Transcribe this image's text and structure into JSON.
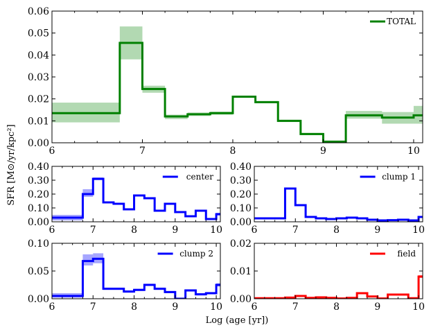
{
  "figure": {
    "xlabel": "Log (age [yr])",
    "ylabel": "SFR [M⊙/yr/kpc²]"
  },
  "chart_data": [
    {
      "id": "total",
      "type": "line",
      "step": true,
      "legend": "TOTAL",
      "color": "#008000",
      "xlim": [
        6,
        10.1
      ],
      "ylim": [
        0,
        0.06
      ],
      "xticks": [
        6,
        7,
        8,
        9,
        10
      ],
      "yticks": [
        0,
        0.01,
        0.02,
        0.03,
        0.04,
        0.05,
        0.06
      ],
      "xtick_labels": [
        "6",
        "7",
        "8",
        "9",
        "10"
      ],
      "ytick_labels": [
        "0.00",
        "0.01",
        "0.02",
        "0.03",
        "0.04",
        "0.05",
        "0.06"
      ],
      "edges": [
        6,
        6.75,
        7.0,
        7.25,
        7.5,
        7.75,
        8.0,
        8.25,
        8.5,
        8.75,
        9.0,
        9.25,
        9.65,
        10.0,
        10.1
      ],
      "values": [
        0.0135,
        0.0455,
        0.0245,
        0.012,
        0.013,
        0.0135,
        0.021,
        0.0185,
        0.01,
        0.004,
        0.0005,
        0.0125,
        0.0115,
        0.0125
      ],
      "band_lo": [
        0.0093,
        0.038,
        0.0228,
        0.0108,
        0.0122,
        0.0128,
        0.0205,
        0.018,
        0.0095,
        0.0035,
        0.0002,
        0.011,
        0.0087,
        0.0087
      ],
      "band_hi": [
        0.0183,
        0.053,
        0.026,
        0.0128,
        0.0138,
        0.0142,
        0.0215,
        0.019,
        0.0105,
        0.0045,
        0.0008,
        0.0145,
        0.014,
        0.0168
      ]
    },
    {
      "id": "center",
      "type": "line",
      "step": true,
      "legend": "center",
      "color": "#0000ff",
      "xlim": [
        6,
        10.1
      ],
      "ylim": [
        0,
        0.4
      ],
      "xticks": [
        6,
        7,
        8,
        9,
        10
      ],
      "yticks": [
        0,
        0.1,
        0.2,
        0.3,
        0.4
      ],
      "xtick_labels": [
        "6",
        "7",
        "8",
        "9",
        "10"
      ],
      "ytick_labels": [
        "0.00",
        "0.10",
        "0.20",
        "0.30",
        "0.40"
      ],
      "edges": [
        6,
        6.75,
        7.0,
        7.25,
        7.5,
        7.75,
        8.0,
        8.25,
        8.5,
        8.75,
        9.0,
        9.25,
        9.5,
        9.75,
        10.0,
        10.1
      ],
      "values": [
        0.03,
        0.2,
        0.31,
        0.14,
        0.13,
        0.09,
        0.19,
        0.17,
        0.08,
        0.13,
        0.07,
        0.04,
        0.08,
        0.02,
        0.055
      ],
      "band_lo": [
        0.01,
        0.18,
        0.3,
        0.135,
        0.125,
        0.085,
        0.185,
        0.165,
        0.075,
        0.125,
        0.065,
        0.035,
        0.075,
        0.015,
        0.045
      ],
      "band_hi": [
        0.05,
        0.235,
        0.32,
        0.145,
        0.135,
        0.095,
        0.195,
        0.175,
        0.085,
        0.135,
        0.075,
        0.045,
        0.085,
        0.025,
        0.065
      ]
    },
    {
      "id": "clump1",
      "type": "line",
      "step": true,
      "legend": "clump 1",
      "color": "#0000ff",
      "xlim": [
        6,
        10.1
      ],
      "ylim": [
        0,
        0.4
      ],
      "xticks": [
        6,
        7,
        8,
        9,
        10
      ],
      "yticks": [
        0,
        0.1,
        0.2,
        0.3,
        0.4
      ],
      "xtick_labels": [
        "6",
        "7",
        "8",
        "9",
        "10"
      ],
      "ytick_labels": [
        "0.00",
        "0.10",
        "0.20",
        "0.30",
        "0.40"
      ],
      "edges": [
        6,
        6.75,
        7.0,
        7.25,
        7.5,
        7.75,
        8.0,
        8.25,
        8.5,
        8.75,
        9.0,
        9.25,
        9.5,
        9.75,
        10.0,
        10.1
      ],
      "values": [
        0.025,
        0.24,
        0.12,
        0.035,
        0.025,
        0.02,
        0.025,
        0.03,
        0.025,
        0.015,
        0.01,
        0.012,
        0.015,
        0.01,
        0.035
      ],
      "band_lo": [
        0.022,
        0.235,
        0.115,
        0.03,
        0.022,
        0.018,
        0.022,
        0.027,
        0.022,
        0.012,
        0.008,
        0.01,
        0.012,
        0.008,
        0.03
      ],
      "band_hi": [
        0.028,
        0.245,
        0.125,
        0.04,
        0.028,
        0.022,
        0.028,
        0.033,
        0.028,
        0.018,
        0.012,
        0.014,
        0.018,
        0.012,
        0.04
      ]
    },
    {
      "id": "clump2",
      "type": "line",
      "step": true,
      "legend": "clump 2",
      "color": "#0000ff",
      "xlim": [
        6,
        10.1
      ],
      "ylim": [
        0,
        0.1
      ],
      "xticks": [
        6,
        7,
        8,
        9,
        10
      ],
      "yticks": [
        0,
        0.05,
        0.1
      ],
      "xtick_labels": [
        "6",
        "7",
        "8",
        "9",
        "10"
      ],
      "ytick_labels": [
        "0.00",
        "0.05",
        "0.10"
      ],
      "edges": [
        6,
        6.75,
        7.0,
        7.25,
        7.5,
        7.75,
        8.0,
        8.25,
        8.5,
        8.75,
        9.0,
        9.25,
        9.5,
        9.75,
        10.0,
        10.1
      ],
      "values": [
        0.005,
        0.068,
        0.072,
        0.018,
        0.018,
        0.013,
        0.016,
        0.025,
        0.018,
        0.012,
        0.0,
        0.015,
        0.008,
        0.01,
        0.025
      ],
      "band_lo": [
        0.002,
        0.06,
        0.064,
        0.016,
        0.016,
        0.011,
        0.014,
        0.023,
        0.016,
        0.01,
        0.0,
        0.013,
        0.006,
        0.008,
        0.022
      ],
      "band_hi": [
        0.01,
        0.08,
        0.082,
        0.02,
        0.02,
        0.015,
        0.018,
        0.027,
        0.02,
        0.014,
        0.002,
        0.017,
        0.01,
        0.012,
        0.028
      ]
    },
    {
      "id": "field",
      "type": "line",
      "step": true,
      "legend": "field",
      "color": "#ff0000",
      "xlim": [
        6,
        10.1
      ],
      "ylim": [
        0,
        0.02
      ],
      "xticks": [
        6,
        7,
        8,
        9,
        10
      ],
      "yticks": [
        0,
        0.01,
        0.02
      ],
      "xtick_labels": [
        "6",
        "7",
        "8",
        "9",
        "10"
      ],
      "ytick_labels": [
        "0.00",
        "0.01",
        "0.02"
      ],
      "edges": [
        6,
        6.75,
        7.0,
        7.25,
        7.5,
        7.75,
        8.0,
        8.25,
        8.5,
        8.75,
        9.0,
        9.25,
        9.5,
        9.75,
        10.0,
        10.1
      ],
      "values": [
        0.0002,
        0.0004,
        0.001,
        0.0003,
        0.0005,
        0.0003,
        0.0001,
        0.0003,
        0.002,
        0.0008,
        0.0001,
        0.0015,
        0.0015,
        0.0002,
        0.008
      ],
      "band_lo": [
        0.0001,
        0.0003,
        0.0009,
        0.0002,
        0.0004,
        0.0002,
        0.0,
        0.0002,
        0.0018,
        0.0007,
        0.0,
        0.0013,
        0.0013,
        0.0001,
        0.0075
      ],
      "band_hi": [
        0.0003,
        0.0005,
        0.0011,
        0.0004,
        0.0006,
        0.0004,
        0.0002,
        0.0004,
        0.0022,
        0.0009,
        0.0002,
        0.0017,
        0.0017,
        0.0003,
        0.0085
      ]
    }
  ]
}
